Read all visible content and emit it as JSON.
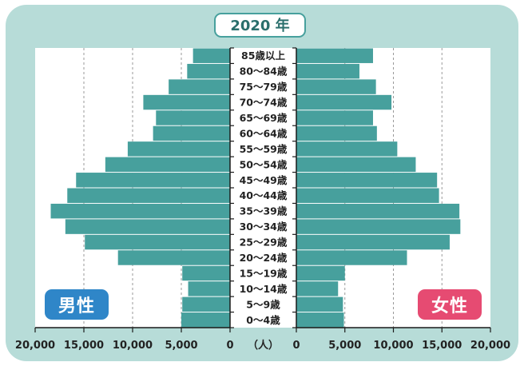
{
  "chart_data": {
    "type": "bar",
    "subtype": "population-pyramid",
    "title": "2020 年",
    "unit": "（人）",
    "categories": [
      "85歳以上",
      "80〜84歳",
      "75〜79歳",
      "70〜74歳",
      "65〜69歳",
      "60〜64歳",
      "55〜59歳",
      "50〜54歳",
      "45〜49歳",
      "40〜44歳",
      "35〜39歳",
      "30〜34歳",
      "25〜29歳",
      "20〜24歳",
      "15〜19歳",
      "10〜14歳",
      "5〜9歳",
      "0〜4歳"
    ],
    "series": [
      {
        "name": "男性",
        "color": "#47a09d",
        "values": [
          3800,
          4400,
          6300,
          8900,
          7600,
          7900,
          10500,
          12800,
          15800,
          16700,
          18400,
          16900,
          14900,
          11500,
          4900,
          4300,
          4900,
          5000
        ]
      },
      {
        "name": "女性",
        "color": "#47a09d",
        "values": [
          7900,
          6500,
          8200,
          9800,
          7900,
          8300,
          10400,
          12300,
          14500,
          14700,
          16800,
          16900,
          15800,
          11400,
          5000,
          4300,
          4800,
          4900
        ]
      }
    ],
    "xlim": [
      0,
      20000
    ],
    "xticks": [
      "20,000",
      "15,000",
      "10,000",
      "5,000",
      "0",
      "0",
      "5,000",
      "10,000",
      "15,000",
      "20,000"
    ],
    "grid": "dashed vertical",
    "colors": {
      "frame": "#b7dcd8",
      "bar": "#47a09d",
      "male_badge": "#2f86c8",
      "female_badge": "#e64b72"
    }
  }
}
